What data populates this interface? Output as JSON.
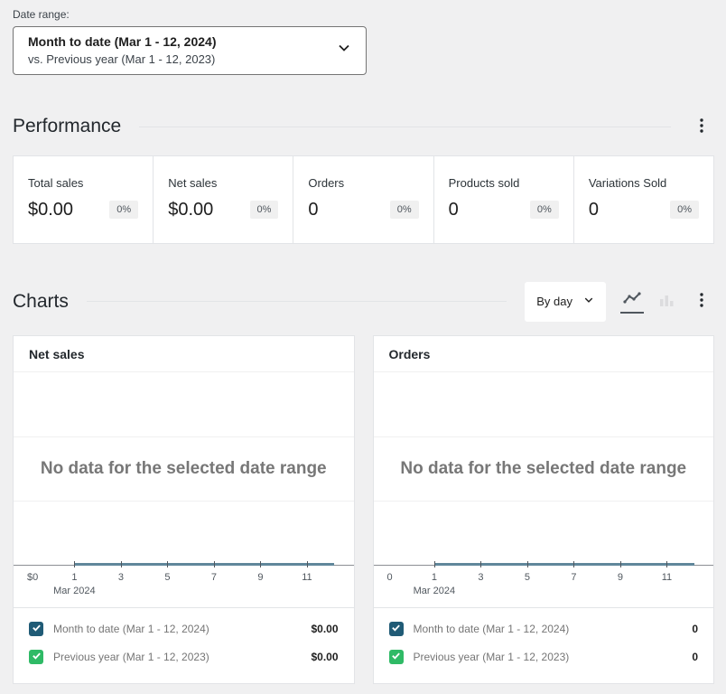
{
  "colors": {
    "series_primary": "#205b76",
    "series_secondary": "#2fba66",
    "chart_zero_line": "#60879b",
    "page_background": "#f0f0f1"
  },
  "date_range": {
    "label": "Date range:",
    "primary": "Month to date (Mar 1 - 12, 2024)",
    "comparison": "vs. Previous year (Mar 1 - 12, 2023)"
  },
  "performance": {
    "title": "Performance",
    "cards": [
      {
        "label": "Total sales",
        "value": "$0.00",
        "delta": "0%"
      },
      {
        "label": "Net sales",
        "value": "$0.00",
        "delta": "0%"
      },
      {
        "label": "Orders",
        "value": "0",
        "delta": "0%"
      },
      {
        "label": "Products sold",
        "value": "0",
        "delta": "0%"
      },
      {
        "label": "Variations Sold",
        "value": "0",
        "delta": "0%"
      }
    ]
  },
  "charts": {
    "title": "Charts",
    "interval_selector": {
      "value": "By day"
    },
    "no_data_message": "No data for the selected date range",
    "month_label": "Mar 2024",
    "x_ticks": [
      "1",
      "3",
      "5",
      "7",
      "9",
      "11"
    ],
    "panels": [
      {
        "title": "Net sales",
        "y_zero_label": "$0",
        "legend": [
          {
            "label": "Month to date (Mar 1 - 12, 2024)",
            "value": "$0.00",
            "color": "#205b76",
            "checked": true
          },
          {
            "label": "Previous year (Mar 1 - 12, 2023)",
            "value": "$0.00",
            "color": "#2fba66",
            "checked": true
          }
        ]
      },
      {
        "title": "Orders",
        "y_zero_label": "0",
        "legend": [
          {
            "label": "Month to date (Mar 1 - 12, 2024)",
            "value": "0",
            "color": "#205b76",
            "checked": true
          },
          {
            "label": "Previous year (Mar 1 - 12, 2023)",
            "value": "0",
            "color": "#2fba66",
            "checked": true
          }
        ]
      }
    ]
  },
  "chart_data": [
    {
      "type": "line",
      "title": "Net sales",
      "x": [
        1,
        2,
        3,
        4,
        5,
        6,
        7,
        8,
        9,
        10,
        11,
        12
      ],
      "x_tick_labels": [
        "1",
        "3",
        "5",
        "7",
        "9",
        "11"
      ],
      "xlabel": "Mar 2024",
      "y_zero_label": "$0",
      "series": [
        {
          "name": "Month to date (Mar 1 - 12, 2024)",
          "values": [
            0,
            0,
            0,
            0,
            0,
            0,
            0,
            0,
            0,
            0,
            0,
            0
          ],
          "total": "$0.00"
        },
        {
          "name": "Previous year (Mar 1 - 12, 2023)",
          "values": [
            0,
            0,
            0,
            0,
            0,
            0,
            0,
            0,
            0,
            0,
            0,
            0
          ],
          "total": "$0.00"
        }
      ],
      "annotation": "No data for the selected date range",
      "grid": true,
      "legend_position": "bottom"
    },
    {
      "type": "line",
      "title": "Orders",
      "x": [
        1,
        2,
        3,
        4,
        5,
        6,
        7,
        8,
        9,
        10,
        11,
        12
      ],
      "x_tick_labels": [
        "1",
        "3",
        "5",
        "7",
        "9",
        "11"
      ],
      "xlabel": "Mar 2024",
      "y_zero_label": "0",
      "series": [
        {
          "name": "Month to date (Mar 1 - 12, 2024)",
          "values": [
            0,
            0,
            0,
            0,
            0,
            0,
            0,
            0,
            0,
            0,
            0,
            0
          ],
          "total": "0"
        },
        {
          "name": "Previous year (Mar 1 - 12, 2023)",
          "values": [
            0,
            0,
            0,
            0,
            0,
            0,
            0,
            0,
            0,
            0,
            0,
            0
          ],
          "total": "0"
        }
      ],
      "annotation": "No data for the selected date range",
      "grid": true,
      "legend_position": "bottom"
    }
  ]
}
